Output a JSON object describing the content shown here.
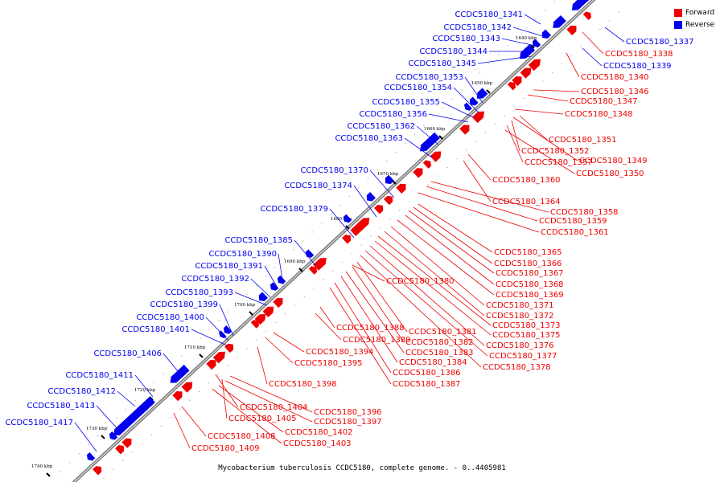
{
  "caption": "Mycobacterium tuberculosis CCDC5180, complete genome. - 0..4405981",
  "legend": [
    {
      "label": "Forward",
      "color": "#ee0000"
    },
    {
      "label": "Reverse",
      "color": "#0000ee"
    }
  ],
  "colors": {
    "forward": "#ee0000",
    "reverse": "#0000ee",
    "axis": "#888888"
  },
  "ticks": [
    "1640 kbp",
    "1650 kbp",
    "1660 kbp",
    "1670 kbp",
    "1680 kbp",
    "1690 kbp",
    "1700 kbp",
    "1710 kbp",
    "1720 kbp",
    "1730 kbp",
    "1740 kbp"
  ],
  "reverse_genes": [
    "CCDC5180_1341",
    "CCDC5180_1342",
    "CCDC5180_1343",
    "CCDC5180_1344",
    "CCDC5180_1345",
    "CCDC5180_1353",
    "CCDC5180_1354",
    "CCDC5180_1355",
    "CCDC5180_1356",
    "CCDC5180_1362",
    "CCDC5180_1363",
    "CCDC5180_1370",
    "CCDC5180_1374",
    "CCDC5180_1379",
    "CCDC5180_1385",
    "CCDC5180_1390",
    "CCDC5180_1391",
    "CCDC5180_1392",
    "CCDC5180_1393",
    "CCDC5180_1399",
    "CCDC5180_1400",
    "CCDC5180_1401",
    "CCDC5180_1406",
    "CCDC5180_1411",
    "CCDC5180_1412",
    "CCDC5180_1413",
    "CCDC5180_1417",
    "CCDC5180_1337",
    "CCDC5180_1339"
  ],
  "forward_genes": [
    "CCDC5180_1338",
    "CCDC5180_1340",
    "CCDC5180_1346",
    "CCDC5180_1347",
    "CCDC5180_1348",
    "CCDC5180_1351",
    "CCDC5180_1352",
    "CCDC5180_1349",
    "CCDC5180_1357",
    "CCDC5180_1350",
    "CCDC5180_1360",
    "CCDC5180_1364",
    "CCDC5180_1358",
    "CCDC5180_1359",
    "CCDC5180_1361",
    "CCDC5180_1365",
    "CCDC5180_1366",
    "CCDC5180_1367",
    "CCDC5180_1368",
    "CCDC5180_1369",
    "CCDC5180_1380",
    "CCDC5180_1371",
    "CCDC5180_1372",
    "CCDC5180_1373",
    "CCDC5180_1375",
    "CCDC5180_1388",
    "CCDC5180_1381",
    "CCDC5180_1376",
    "CCDC5180_1389",
    "CCDC5180_1382",
    "CCDC5180_1377",
    "CCDC5180_1394",
    "CCDC5180_1383",
    "CCDC5180_1395",
    "CCDC5180_1384",
    "CCDC5180_1378",
    "CCDC5180_1386",
    "CCDC5180_1387",
    "CCDC5180_1398",
    "CCDC5180_1404",
    "CCDC5180_1396",
    "CCDC5180_1405",
    "CCDC5180_1397",
    "CCDC5180_1408",
    "CCDC5180_1402",
    "CCDC5180_1403",
    "CCDC5180_1409"
  ]
}
